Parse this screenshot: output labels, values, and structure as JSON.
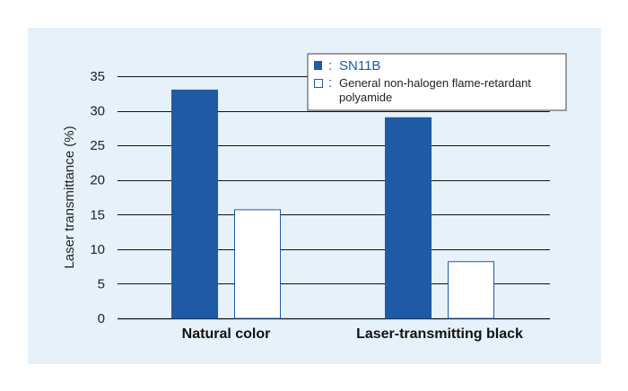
{
  "chart_data": {
    "type": "bar",
    "ylabel": "Laser transmittance (%)",
    "xlabel": "",
    "ylim": [
      0,
      35
    ],
    "yticks": [
      0,
      5,
      10,
      15,
      20,
      25,
      30,
      35
    ],
    "categories": [
      "Natural color",
      "Laser-transmitting black"
    ],
    "series": [
      {
        "name": "SN11B",
        "values": [
          33,
          29
        ],
        "color": "#1f5aa6",
        "fill": "#1f5aa6"
      },
      {
        "name": "General non-halogen flame-retardant polyamide",
        "values": [
          15.7,
          8.2
        ],
        "color": "#1f5aa6",
        "fill": "#ffffff"
      }
    ],
    "legend": {
      "placement": "top-right",
      "entries": [
        {
          "marker": "filled",
          "text": "SN11B"
        },
        {
          "marker": "hollow",
          "text_line1": "General non-halogen flame-retardant",
          "text_line2": "polyamide"
        }
      ],
      "separator": ":"
    },
    "grid": "horizontal"
  },
  "colors": {
    "panel_background": "#e6f1fa",
    "bar_fill": "#1f5aa6",
    "bar_outline": "#1f5aa6",
    "grid": "#111111"
  }
}
